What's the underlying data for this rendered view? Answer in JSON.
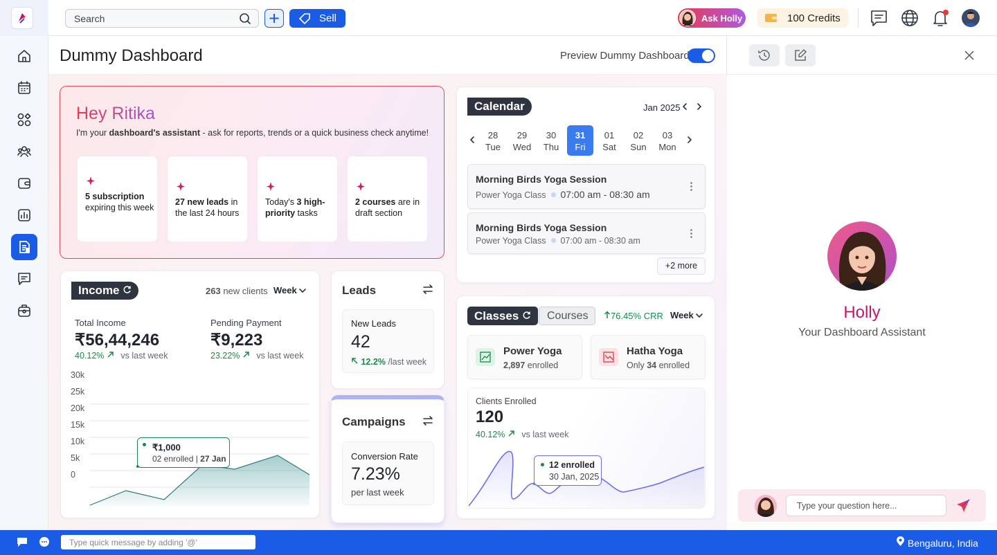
{
  "topbar": {
    "search": "Search",
    "sell": "Sell",
    "ask_holly": "Ask Holly",
    "credits": "100 Credits"
  },
  "header": {
    "title": "Dummy Dashboard",
    "preview_label": "Preview Dummy Dashboard"
  },
  "greeting": {
    "title": "Hey Ritika",
    "intro": [
      {
        "text": "I'm your "
      },
      {
        "text": "dashboard's assistant",
        "bold": true
      },
      {
        "text": " - ask for reports, trends or a quick business check anytime!"
      }
    ],
    "cards": [
      [
        {
          "text": "5 subscription",
          "bold": true
        },
        {
          "text": " expiring this week"
        }
      ],
      [
        {
          "text": "27 new leads",
          "bold": true
        },
        {
          "text": " in the last 24 hours"
        }
      ],
      [
        {
          "text": "Today's "
        },
        {
          "text": "3 high-priority",
          "bold": true
        },
        {
          "text": " tasks"
        }
      ],
      [
        {
          "text": "2 courses",
          "bold": true
        },
        {
          "text": " are in draft section"
        }
      ]
    ]
  },
  "income": {
    "title": "Income",
    "clients_count": "263",
    "clients_label": "new clients",
    "period": "Week",
    "total_label": "Total Income",
    "total_value": "₹56,44,246",
    "total_change": "40.12%",
    "total_vs": "vs last week",
    "pending_label": "Pending Payment",
    "pending_value": "₹9,223",
    "pending_change": "23.22%",
    "pending_vs": "vs last week",
    "y_labels": [
      "30k",
      "25k",
      "20k",
      "15k",
      "10k",
      "5k",
      "0"
    ],
    "tooltip": {
      "amount": "₹1,000",
      "detail": [
        {
          "text": "02 enrolled"
        },
        {
          "text": " | "
        },
        {
          "text": "27 Jan",
          "bold": true
        }
      ]
    }
  },
  "leads": {
    "title": "Leads",
    "metric_label": "New Leads",
    "value": "42",
    "change": "12.2%",
    "change_suffix": "/last week"
  },
  "campaigns": {
    "title": "Campaigns",
    "metric_label": "Conversion Rate",
    "value": "7.23%",
    "note": "per last week"
  },
  "calendar": {
    "title": "Calendar",
    "month": "Jan 2025",
    "selected": 3,
    "days": [
      {
        "date": "28",
        "day": "Tue"
      },
      {
        "date": "29",
        "day": "Wed"
      },
      {
        "date": "30",
        "day": "Thu"
      },
      {
        "date": "31",
        "day": "Fri"
      },
      {
        "date": "01",
        "day": "Sat"
      },
      {
        "date": "02",
        "day": "Sun"
      },
      {
        "date": "03",
        "day": "Mon"
      }
    ],
    "events": [
      {
        "title": "Morning Birds Yoga Session",
        "class": "Power Yoga Class",
        "time": "07:00 am - 08:30 am"
      },
      {
        "title": "Morning Birds Yoga Session",
        "class": "Power Yoga Class",
        "time": "07:00 am - 08:30 am"
      }
    ],
    "more": "+2 more"
  },
  "classes": {
    "tabs": [
      "Classes",
      "Courses"
    ],
    "crr": "76.45% CRR",
    "period": "Week",
    "items": [
      {
        "name": "Power Yoga",
        "trend": "up",
        "detail": [
          {
            "text": "2,897",
            "bold": true
          },
          {
            "text": " enrolled"
          }
        ]
      },
      {
        "name": "Hatha Yoga",
        "trend": "down",
        "detail": [
          {
            "text": "Only "
          },
          {
            "text": "34",
            "bold": true
          },
          {
            "text": " enrolled"
          }
        ]
      }
    ],
    "clients_label": "Clients Enrolled",
    "clients_value": "120",
    "clients_change": "40.12%",
    "clients_vs": "vs last week",
    "tooltip": {
      "title": "12 enrolled",
      "date": "30 Jan, 2025"
    }
  },
  "assistant": {
    "name": "Holly",
    "subtitle": "Your Dashboard Assistant",
    "input_placeholder": "Type your question here..."
  },
  "footer": {
    "input_placeholder": "Type quick message by adding '@'",
    "location": "Bengaluru, India"
  }
}
